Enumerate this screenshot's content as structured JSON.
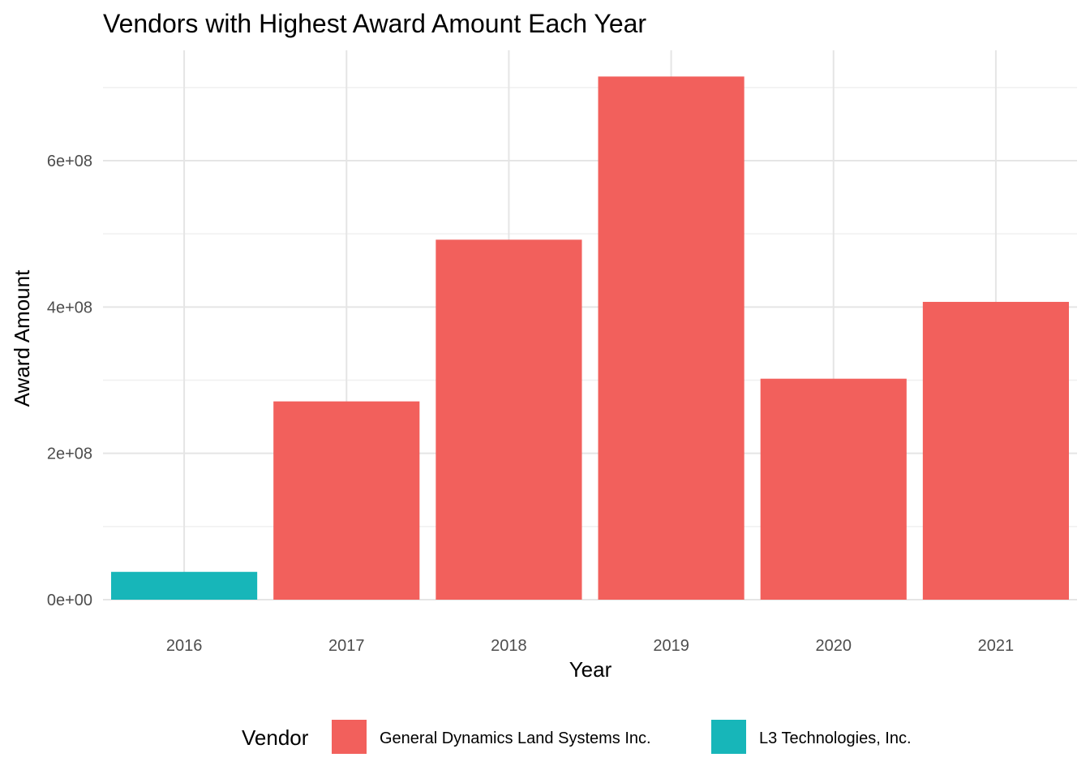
{
  "chart_data": {
    "type": "bar",
    "title": "Vendors with Highest Award Amount Each Year",
    "xlabel": "Year",
    "ylabel": "Award Amount",
    "categories": [
      "2016",
      "2017",
      "2018",
      "2019",
      "2020",
      "2021"
    ],
    "values": [
      38000000,
      271000000,
      492000000,
      715000000,
      302000000,
      407000000
    ],
    "vendors": [
      "L3 Technologies, Inc.",
      "General Dynamics Land Systems Inc.",
      "General Dynamics Land Systems Inc.",
      "General Dynamics Land Systems Inc.",
      "General Dynamics Land Systems Inc.",
      "General Dynamics Land Systems Inc."
    ],
    "ylim": [
      0,
      750000000
    ],
    "yticks": [
      {
        "value": 0,
        "label": "0e+00"
      },
      {
        "value": 200000000,
        "label": "2e+08"
      },
      {
        "value": 400000000,
        "label": "4e+08"
      },
      {
        "value": 600000000,
        "label": "6e+08"
      }
    ],
    "grid": true,
    "legend": {
      "title": "Vendor",
      "position": "bottom",
      "entries": [
        {
          "name": "General Dynamics Land Systems Inc.",
          "color": "#F2605C"
        },
        {
          "name": "L3 Technologies, Inc.",
          "color": "#17B6B9"
        }
      ]
    }
  },
  "colors": {
    "General Dynamics Land Systems Inc.": "#F2605C",
    "L3 Technologies, Inc.": "#17B6B9",
    "grid_major": "#E5E5E5",
    "grid_minor": "#F0F0F0"
  }
}
